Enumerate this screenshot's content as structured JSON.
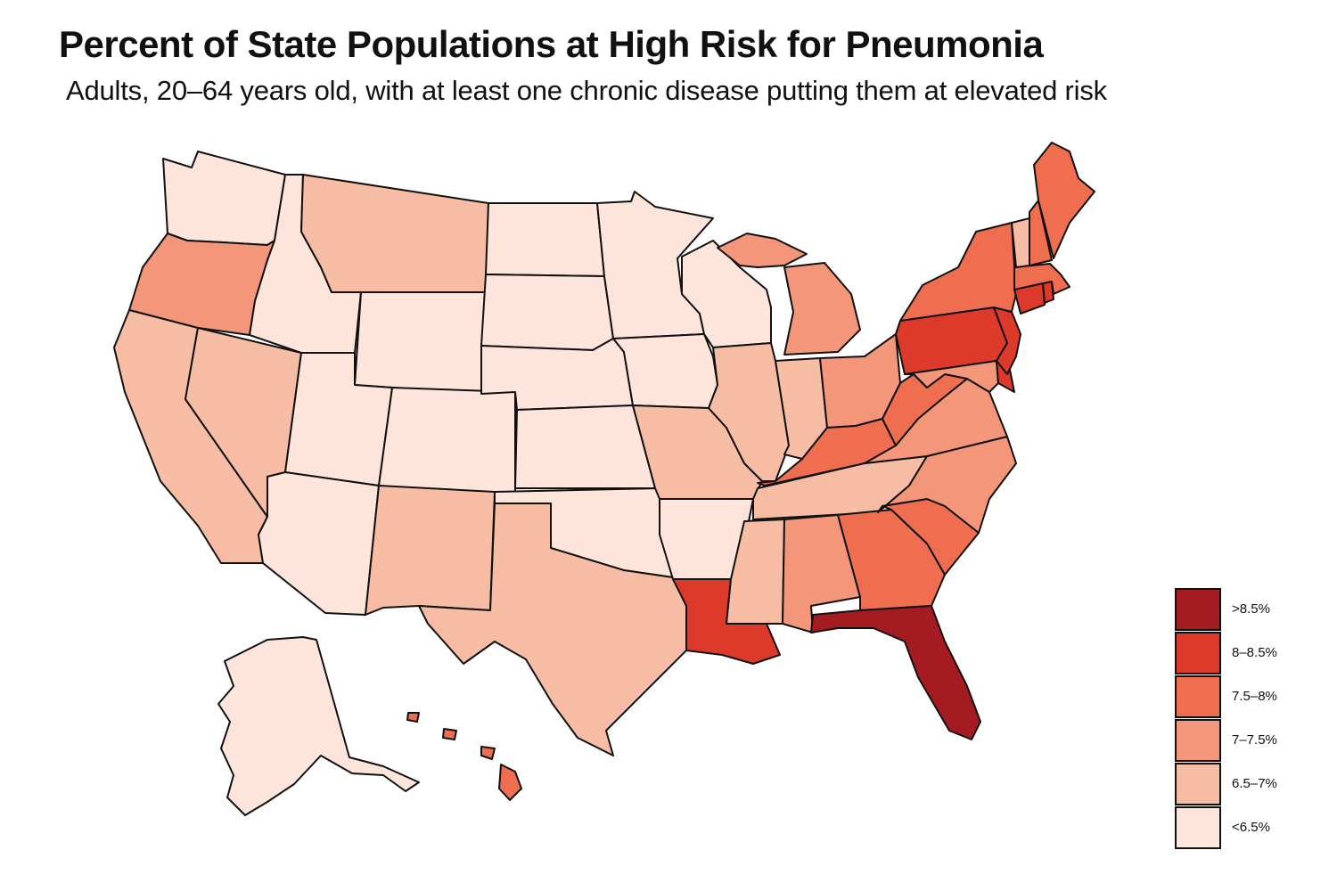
{
  "title": "Percent of State Populations at High Risk for Pneumonia",
  "subtitle": "Adults, 20–64 years old, with at least one chronic disease putting them at elevated risk",
  "colors": {
    "c0": "#fde5dc",
    "c1": "#f7bca4",
    "c2": "#f4967a",
    "c3": "#f06e50",
    "c4": "#de3a2c",
    "c5": "#a41c22"
  },
  "legend": [
    {
      "label": ">8.5%",
      "bin": "c5"
    },
    {
      "label": "8–8.5%",
      "bin": "c4"
    },
    {
      "label": "7.5–8%",
      "bin": "c3"
    },
    {
      "label": "7–7.5%",
      "bin": "c2"
    },
    {
      "label": "6.5–7%",
      "bin": "c1"
    },
    {
      "label": "<6.5%",
      "bin": "c0"
    }
  ],
  "chart_data": {
    "type": "choropleth",
    "region": "United States",
    "states": {
      "Washington": "<6.5%",
      "Oregon": "7–7.5%",
      "California": "6.5–7%",
      "Nevada": "6.5–7%",
      "Idaho": "<6.5%",
      "Montana": "6.5–7%",
      "Wyoming": "<6.5%",
      "Utah": "<6.5%",
      "Colorado": "<6.5%",
      "Arizona": "<6.5%",
      "New Mexico": "6.5–7%",
      "North Dakota": "<6.5%",
      "South Dakota": "<6.5%",
      "Nebraska": "<6.5%",
      "Kansas": "<6.5%",
      "Oklahoma": "<6.5%",
      "Texas": "6.5–7%",
      "Minnesota": "<6.5%",
      "Iowa": "<6.5%",
      "Missouri": "6.5–7%",
      "Arkansas": "<6.5%",
      "Louisiana": "8–8.5%",
      "Wisconsin": "<6.5%",
      "Illinois": "6.5–7%",
      "Michigan": "7–7.5%",
      "Indiana": "6.5–7%",
      "Ohio": "7–7.5%",
      "Kentucky": "7.5–8%",
      "Tennessee": "6.5–7%",
      "Mississippi": "6.5–7%",
      "Alabama": "7–7.5%",
      "Georgia": "7.5–8%",
      "Florida": ">8.5%",
      "South Carolina": "7.5–8%",
      "North Carolina": "7–7.5%",
      "Virginia": "7–7.5%",
      "West Virginia": "7.5–8%",
      "Pennsylvania": "8–8.5%",
      "New York": "7.5–8%",
      "New Jersey": "8–8.5%",
      "Delaware": "8–8.5%",
      "Maryland": "7–7.5%",
      "Connecticut": "8–8.5%",
      "Rhode Island": "8–8.5%",
      "Massachusetts": "7.5–8%",
      "Vermont": "6.5–7%",
      "New Hampshire": "7.5–8%",
      "Maine": "7.5–8%",
      "Alaska": "<6.5%",
      "Hawaii": "7.5–8%"
    }
  }
}
